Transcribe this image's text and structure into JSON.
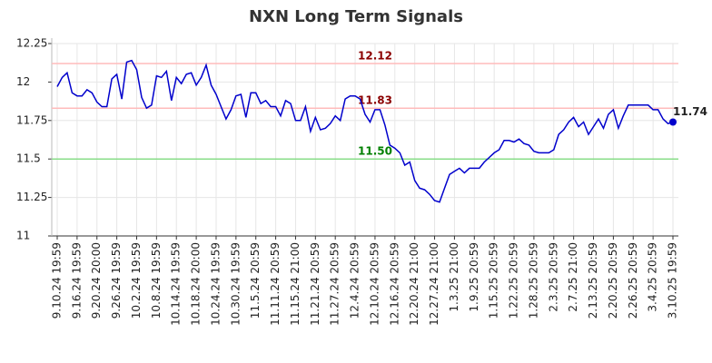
{
  "chart_data": {
    "type": "line",
    "title": "NXN Long Term Signals",
    "categories": [
      "9.10.24 19:59",
      null,
      null,
      null,
      "9.16.24 19:59",
      null,
      null,
      null,
      "9.20.24 20:00",
      null,
      null,
      null,
      "9.26.24 19:59",
      null,
      null,
      null,
      "10.2.24 19:59",
      null,
      null,
      null,
      "10.8.24 19:59",
      null,
      null,
      null,
      "10.14.24 19:59",
      null,
      null,
      null,
      "10.18.24 20:00",
      null,
      null,
      null,
      "10.24.24 19:59",
      null,
      null,
      null,
      "10.30.24 19:59",
      null,
      null,
      null,
      "11.5.24 20:59",
      null,
      null,
      null,
      "11.11.24 20:59",
      null,
      null,
      null,
      "11.15.24 21:00",
      null,
      null,
      null,
      "11.21.24 20:59",
      null,
      null,
      null,
      "11.27.24 20:59",
      null,
      null,
      null,
      "12.4.24 20:59",
      null,
      null,
      null,
      "12.10.24 20:59",
      null,
      null,
      null,
      "12.16.24 20:59",
      null,
      null,
      null,
      "12.20.24 21:00",
      null,
      null,
      null,
      "12.27.24 21:00",
      null,
      null,
      null,
      "1.3.25 21:00",
      null,
      null,
      null,
      "1.9.25 20:59",
      null,
      null,
      null,
      "1.15.25 20:59",
      null,
      null,
      null,
      "1.22.25 20:59",
      null,
      null,
      null,
      "1.28.25 20:59",
      null,
      null,
      null,
      "2.3.25 20:59",
      null,
      null,
      null,
      "2.7.25 21:00",
      null,
      null,
      null,
      "2.13.25 20:59",
      null,
      null,
      null,
      "2.20.25 20:59",
      null,
      null,
      null,
      "2.26.25 20:59",
      null,
      null,
      null,
      "3.4.25 20:59",
      null,
      null,
      null,
      "3.10.25 19:59"
    ],
    "values": [
      11.97,
      12.03,
      12.06,
      11.93,
      11.91,
      11.91,
      11.95,
      11.93,
      11.87,
      11.84,
      11.84,
      12.02,
      12.05,
      11.89,
      12.13,
      12.14,
      12.08,
      11.9,
      11.83,
      11.85,
      12.04,
      12.03,
      12.07,
      11.88,
      12.03,
      11.99,
      12.05,
      12.06,
      11.98,
      12.03,
      12.11,
      11.98,
      11.92,
      11.84,
      11.76,
      11.82,
      11.91,
      11.92,
      11.77,
      11.93,
      11.93,
      11.86,
      11.88,
      11.84,
      11.84,
      11.78,
      11.88,
      11.86,
      11.75,
      11.75,
      11.84,
      11.68,
      11.77,
      11.69,
      11.7,
      11.73,
      11.78,
      11.75,
      11.89,
      11.91,
      11.91,
      11.89,
      11.79,
      11.74,
      11.82,
      11.82,
      11.72,
      11.59,
      11.57,
      11.54,
      11.46,
      11.48,
      11.36,
      11.31,
      11.3,
      11.27,
      11.23,
      11.22,
      11.31,
      11.4,
      11.42,
      11.44,
      11.41,
      11.44,
      11.44,
      11.44,
      11.48,
      11.51,
      11.54,
      11.56,
      11.62,
      11.62,
      11.61,
      11.63,
      11.6,
      11.59,
      11.55,
      11.54,
      11.54,
      11.54,
      11.56,
      11.66,
      11.69,
      11.74,
      11.77,
      11.71,
      11.74,
      11.66,
      11.71,
      11.76,
      11.7,
      11.79,
      11.82,
      11.7,
      11.78,
      11.85,
      11.85,
      11.85,
      11.85,
      11.85,
      11.82,
      11.82,
      11.76,
      11.73,
      11.74
    ],
    "color": "#0000cc",
    "end_label": 11.74,
    "hlines": [
      {
        "value": 12.12,
        "label": "12.12",
        "color": "#ffbbbb",
        "label_color": "#8b0000"
      },
      {
        "value": 11.83,
        "label": "11.83",
        "color": "#ffbbbb",
        "label_color": "#8b0000"
      },
      {
        "value": 11.5,
        "label": "11.50",
        "color": "#88dd88",
        "label_color": "#008000"
      }
    ],
    "ylim": [
      11,
      12.25
    ],
    "yticks": [
      11,
      11.25,
      11.5,
      11.75,
      12,
      12.25
    ],
    "grid": true
  }
}
